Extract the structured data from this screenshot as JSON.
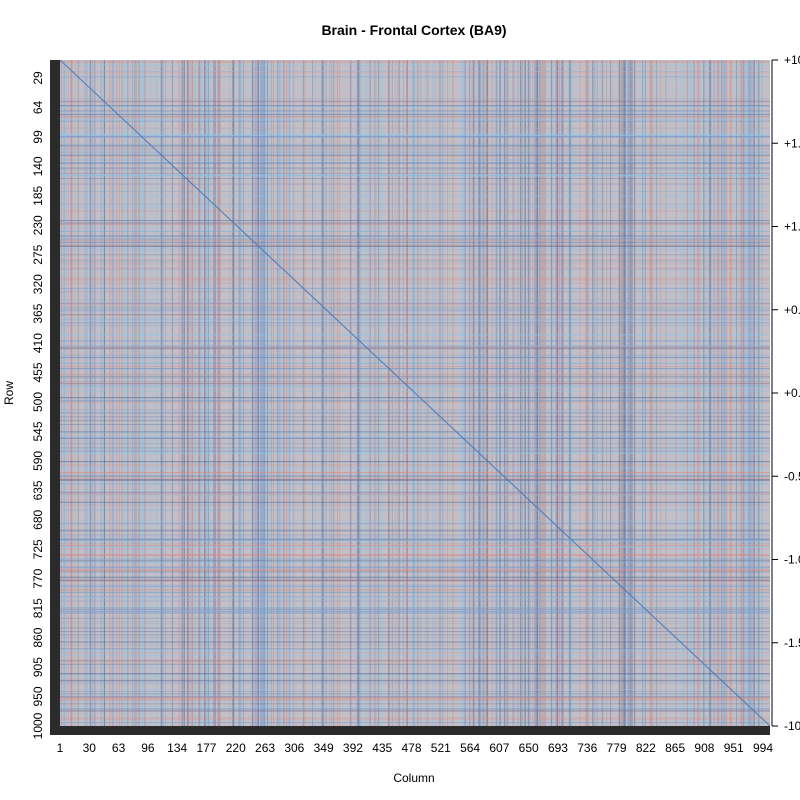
{
  "chart_data": {
    "type": "heatmap",
    "title": "Brain - Frontal Cortex (BA9)",
    "xlabel": "Column",
    "ylabel": "Row",
    "x_ticks": [
      "1",
      "30",
      "63",
      "96",
      "134",
      "177",
      "220",
      "263",
      "306",
      "349",
      "392",
      "435",
      "478",
      "521",
      "564",
      "607",
      "650",
      "693",
      "736",
      "779",
      "822",
      "865",
      "908",
      "951",
      "994"
    ],
    "y_ticks": [
      "29",
      "64",
      "99",
      "140",
      "185",
      "230",
      "275",
      "320",
      "365",
      "410",
      "455",
      "500",
      "545",
      "590",
      "635",
      "680",
      "725",
      "770",
      "815",
      "860",
      "905",
      "950",
      "1000"
    ],
    "colorbar_ticks": [
      "+10",
      "+1.",
      "+1.",
      "+0.",
      "+0.",
      "-0.5",
      "-1.0",
      "-1.5",
      "-10"
    ],
    "n_rows": 1000,
    "n_cols": 994,
    "colors": {
      "background": "#c2bfc6",
      "red": "#d88a80",
      "dark_blue": "#5a6f9c",
      "light_blue": "#8cc4e8",
      "mid_blue": "#7a9fd0",
      "diagonal": "#4a7ab8",
      "dendrogram_bar": "#2b2b2b"
    }
  }
}
